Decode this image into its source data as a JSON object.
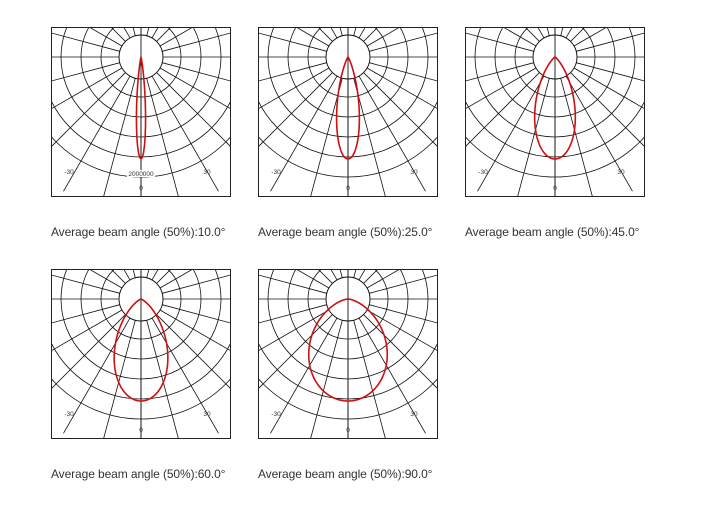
{
  "colors": {
    "curve": "#cc1111",
    "grid": "#111111",
    "text": "#333333"
  },
  "chart_data": [
    {
      "type": "polar",
      "beam_angle_deg": 10,
      "caption_prefix": "Average beam angle (50%):",
      "caption_value": "10.0°",
      "tick_left": "-30",
      "tick_center": "0",
      "tick_right": "30",
      "scale_label": "2000000"
    },
    {
      "type": "polar",
      "beam_angle_deg": 25,
      "caption_prefix": "Average beam angle (50%):",
      "caption_value": "25.0°",
      "tick_left": "-30",
      "tick_center": "0",
      "tick_right": "30",
      "scale_label": ""
    },
    {
      "type": "polar",
      "beam_angle_deg": 45,
      "caption_prefix": "Average beam angle (50%):",
      "caption_value": "45.0°",
      "tick_left": "-30",
      "tick_center": "0",
      "tick_right": "30",
      "scale_label": ""
    },
    {
      "type": "polar",
      "beam_angle_deg": 60,
      "caption_prefix": "Average beam angle (50%):",
      "caption_value": "60.0°",
      "tick_left": "-30",
      "tick_center": "0",
      "tick_right": "30",
      "scale_label": ""
    },
    {
      "type": "polar",
      "beam_angle_deg": 90,
      "caption_prefix": "Average beam angle (50%):",
      "caption_value": "90.0°",
      "tick_left": "-30",
      "tick_center": "0",
      "tick_right": "30",
      "scale_label": ""
    }
  ]
}
